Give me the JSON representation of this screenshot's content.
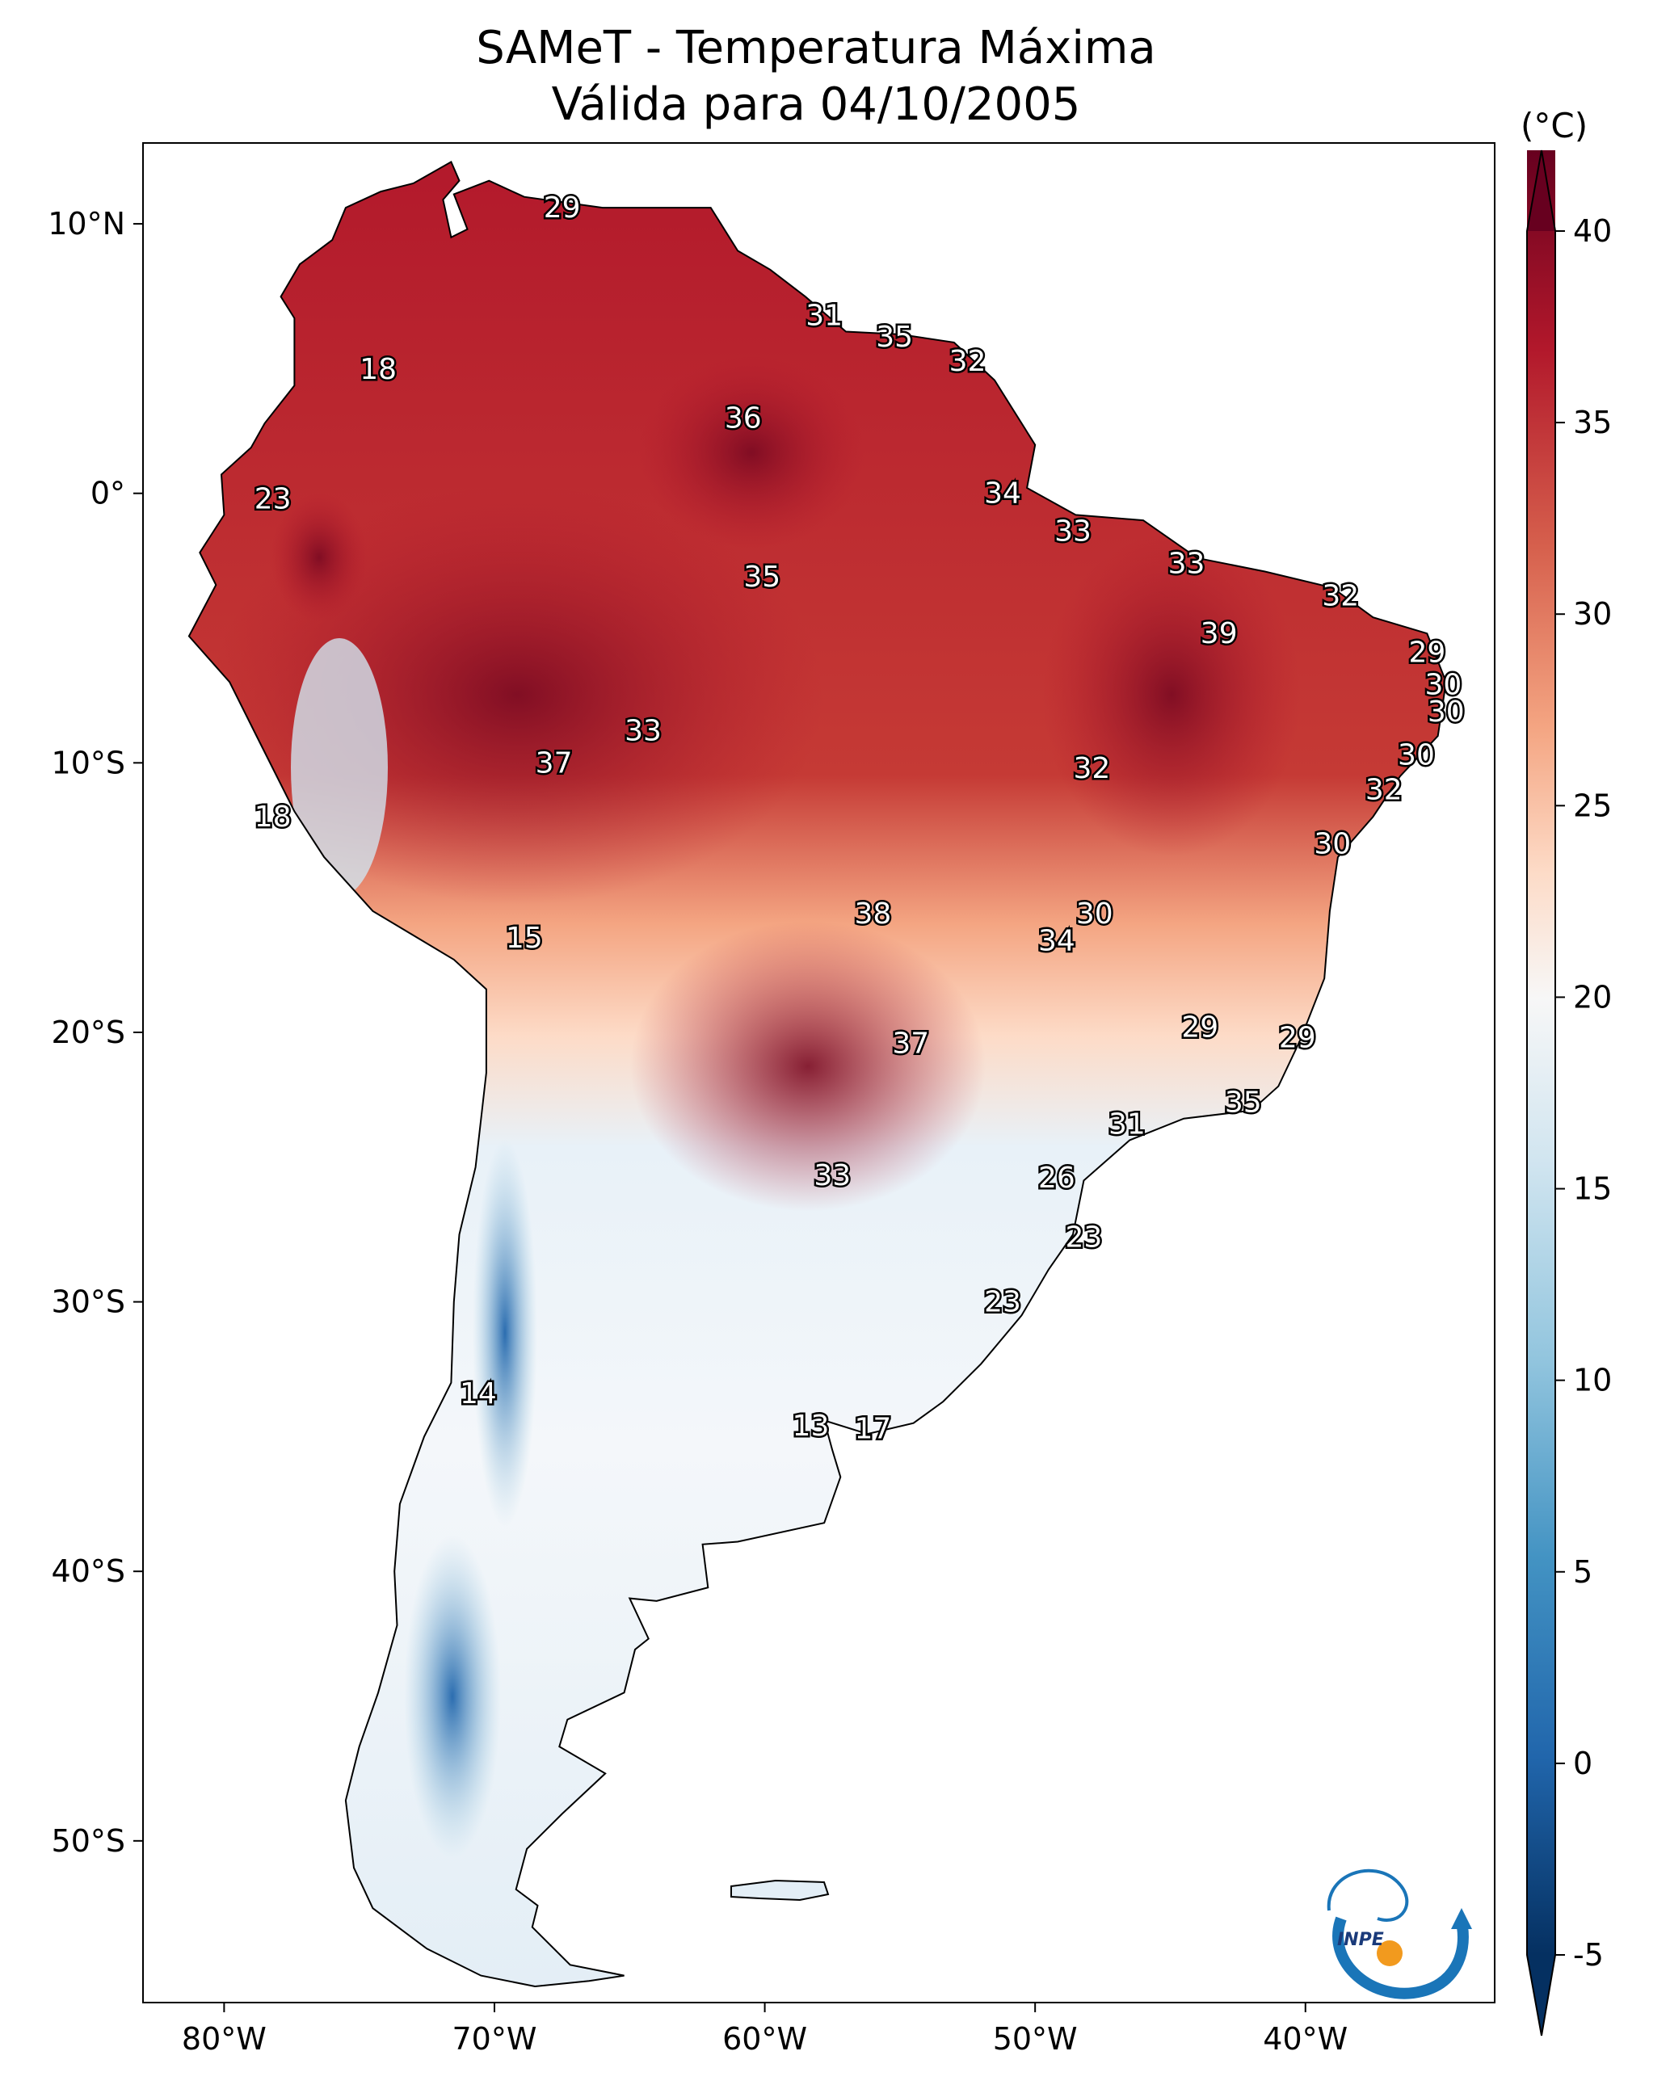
{
  "title_line1": "SAMeT - Temperatura Máxima",
  "title_line2": "Válida para 04/10/2005",
  "map": {
    "lon_range": [
      -83,
      -33
    ],
    "lat_range": [
      -56,
      13
    ],
    "x_ticks": [
      {
        "lon": -80,
        "label": "80°W"
      },
      {
        "lon": -70,
        "label": "70°W"
      },
      {
        "lon": -60,
        "label": "60°W"
      },
      {
        "lon": -50,
        "label": "50°W"
      },
      {
        "lon": -40,
        "label": "40°W"
      }
    ],
    "y_ticks": [
      {
        "lat": 10,
        "label": "10°N"
      },
      {
        "lat": 0,
        "label": "0°"
      },
      {
        "lat": -10,
        "label": "10°S"
      },
      {
        "lat": -20,
        "label": "20°S"
      },
      {
        "lat": -30,
        "label": "30°S"
      },
      {
        "lat": -40,
        "label": "40°S"
      },
      {
        "lat": -50,
        "label": "50°S"
      }
    ],
    "station_labels": [
      {
        "lon": -67.5,
        "lat": 10.6,
        "text": "29"
      },
      {
        "lon": -74.3,
        "lat": 4.6,
        "text": "18"
      },
      {
        "lon": -78.2,
        "lat": -0.2,
        "text": "23"
      },
      {
        "lon": -57.8,
        "lat": 6.6,
        "text": "31"
      },
      {
        "lon": -55.2,
        "lat": 5.8,
        "text": "35"
      },
      {
        "lon": -52.5,
        "lat": 4.9,
        "text": "32"
      },
      {
        "lon": -60.8,
        "lat": 2.8,
        "text": "36"
      },
      {
        "lon": -51.2,
        "lat": 0.0,
        "text": "34"
      },
      {
        "lon": -48.6,
        "lat": -1.4,
        "text": "33"
      },
      {
        "lon": -60.1,
        "lat": -3.1,
        "text": "35"
      },
      {
        "lon": -44.4,
        "lat": -2.6,
        "text": "33"
      },
      {
        "lon": -38.7,
        "lat": -3.8,
        "text": "32"
      },
      {
        "lon": -43.2,
        "lat": -5.2,
        "text": "39"
      },
      {
        "lon": -35.5,
        "lat": -5.9,
        "text": "29"
      },
      {
        "lon": -34.9,
        "lat": -7.1,
        "text": "30"
      },
      {
        "lon": -34.8,
        "lat": -8.1,
        "text": "30"
      },
      {
        "lon": -64.5,
        "lat": -8.8,
        "text": "33"
      },
      {
        "lon": -67.8,
        "lat": -10.0,
        "text": "37"
      },
      {
        "lon": -47.9,
        "lat": -10.2,
        "text": "32"
      },
      {
        "lon": -35.9,
        "lat": -9.7,
        "text": "30"
      },
      {
        "lon": -37.1,
        "lat": -11.0,
        "text": "32"
      },
      {
        "lon": -78.2,
        "lat": -12.0,
        "text": "18"
      },
      {
        "lon": -39.0,
        "lat": -13.0,
        "text": "30"
      },
      {
        "lon": -56.0,
        "lat": -15.6,
        "text": "38"
      },
      {
        "lon": -47.8,
        "lat": -15.6,
        "text": "30"
      },
      {
        "lon": -49.2,
        "lat": -16.6,
        "text": "34"
      },
      {
        "lon": -68.9,
        "lat": -16.5,
        "text": "15"
      },
      {
        "lon": -43.9,
        "lat": -19.8,
        "text": "29"
      },
      {
        "lon": -40.3,
        "lat": -20.2,
        "text": "29"
      },
      {
        "lon": -54.6,
        "lat": -20.4,
        "text": "37"
      },
      {
        "lon": -42.3,
        "lat": -22.6,
        "text": "35"
      },
      {
        "lon": -46.6,
        "lat": -23.4,
        "text": "31"
      },
      {
        "lon": -57.5,
        "lat": -25.3,
        "text": "33"
      },
      {
        "lon": -49.2,
        "lat": -25.4,
        "text": "26"
      },
      {
        "lon": -48.2,
        "lat": -27.6,
        "text": "23"
      },
      {
        "lon": -51.2,
        "lat": -30.0,
        "text": "23"
      },
      {
        "lon": -70.6,
        "lat": -33.4,
        "text": "14"
      },
      {
        "lon": -58.3,
        "lat": -34.6,
        "text": "13"
      },
      {
        "lon": -56.0,
        "lat": -34.7,
        "text": "17"
      }
    ]
  },
  "colorbar": {
    "unit": "(°C)",
    "range": [
      -5,
      40
    ],
    "tick_values": [
      -5,
      0,
      5,
      10,
      15,
      20,
      25,
      30,
      35,
      40
    ],
    "tick_labels": [
      "-5",
      "0",
      "5",
      "10",
      "15",
      "20",
      "25",
      "30",
      "35",
      "40"
    ],
    "colors": [
      "#053061",
      "#2166ac",
      "#4393c3",
      "#92c5de",
      "#d1e5f0",
      "#f7f7f7",
      "#fddbc7",
      "#f4a582",
      "#d6604d",
      "#b2182b",
      "#67001f"
    ]
  },
  "logo_text": "INPE"
}
